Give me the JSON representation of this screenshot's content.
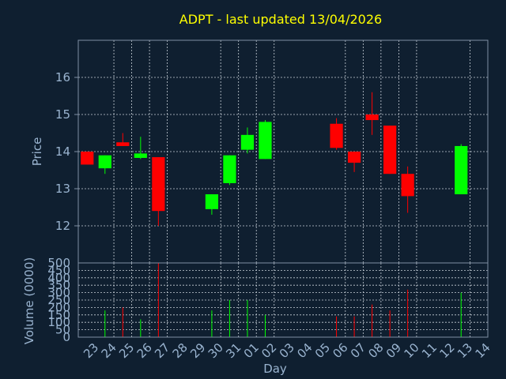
{
  "colors": {
    "background": "#0f1f30",
    "plot_border": "#7f8fa3",
    "grid": "#c8d0d8",
    "title": "#ffff00",
    "axis_text": "#9ab4d0",
    "up": "#00ff00",
    "down": "#ff0000"
  },
  "chart_data": {
    "title": "ADPT - last updated 13/04/2026",
    "type": "candlestick",
    "xlabel": "Day",
    "price_panel": {
      "ylabel": "Price",
      "ylim": [
        11.0,
        17.0
      ],
      "yticks": [
        12,
        13,
        14,
        15,
        16
      ]
    },
    "volume_panel": {
      "ylabel": "Volume (0000)",
      "ylim": [
        0,
        500
      ],
      "yticks": [
        0,
        50,
        100,
        150,
        200,
        250,
        300,
        350,
        400,
        450,
        500
      ]
    },
    "x_labels": [
      "23",
      "24",
      "25",
      "26",
      "27",
      "28",
      "29",
      "30",
      "31",
      "01",
      "02",
      "03",
      "04",
      "05",
      "06",
      "07",
      "08",
      "09",
      "10",
      "11",
      "12",
      "13",
      "14"
    ],
    "x_grid_days": [
      "24",
      "25",
      "26",
      "27",
      "30",
      "31",
      "01",
      "02",
      "06",
      "07",
      "08",
      "09",
      "10",
      "13"
    ],
    "candles": [
      {
        "day": "23",
        "open": 14.0,
        "high": 14.0,
        "low": 13.65,
        "close": 13.65,
        "volume": 0
      },
      {
        "day": "24",
        "open": 13.55,
        "high": 13.9,
        "low": 13.4,
        "close": 13.9,
        "volume": 180
      },
      {
        "day": "25",
        "open": 14.25,
        "high": 14.5,
        "low": 14.15,
        "close": 14.15,
        "volume": 200
      },
      {
        "day": "26",
        "open": 13.83,
        "high": 14.4,
        "low": 13.8,
        "close": 13.95,
        "volume": 120
      },
      {
        "day": "27",
        "open": 13.85,
        "high": 13.85,
        "low": 12.0,
        "close": 12.4,
        "volume": 500
      },
      {
        "day": "30",
        "open": 12.45,
        "high": 12.85,
        "low": 12.3,
        "close": 12.85,
        "volume": 180
      },
      {
        "day": "31",
        "open": 13.15,
        "high": 13.9,
        "low": 13.1,
        "close": 13.9,
        "volume": 250
      },
      {
        "day": "01",
        "open": 14.05,
        "high": 14.65,
        "low": 13.95,
        "close": 14.45,
        "volume": 250
      },
      {
        "day": "02",
        "open": 13.8,
        "high": 14.85,
        "low": 13.8,
        "close": 14.8,
        "volume": 150
      },
      {
        "day": "06",
        "open": 14.75,
        "high": 14.9,
        "low": 14.05,
        "close": 14.1,
        "volume": 140
      },
      {
        "day": "07",
        "open": 14.0,
        "high": 14.0,
        "low": 13.45,
        "close": 13.7,
        "volume": 140
      },
      {
        "day": "08",
        "open": 15.0,
        "high": 15.6,
        "low": 14.45,
        "close": 14.85,
        "volume": 220
      },
      {
        "day": "09",
        "open": 14.7,
        "high": 14.7,
        "low": 13.4,
        "close": 13.4,
        "volume": 180
      },
      {
        "day": "10",
        "open": 13.4,
        "high": 13.6,
        "low": 12.35,
        "close": 12.8,
        "volume": 320
      },
      {
        "day": "13",
        "open": 12.85,
        "high": 14.2,
        "low": 12.85,
        "close": 14.15,
        "volume": 300
      }
    ]
  }
}
